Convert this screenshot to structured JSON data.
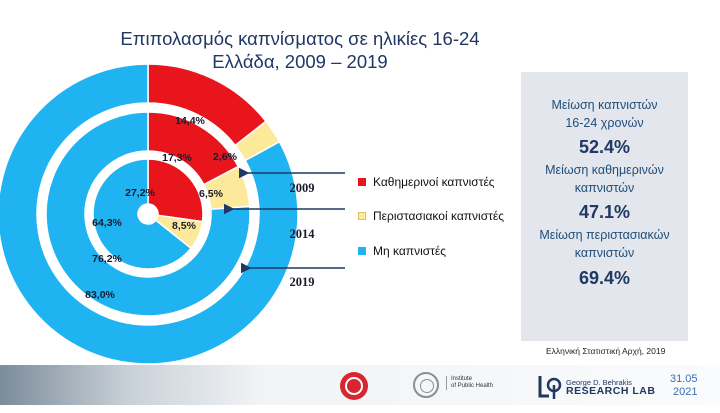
{
  "title": {
    "line1": "Επιπολασμός καπνίσματος σε ηλικίες 16-24",
    "line2": "Ελλάδα, 2009 – 2019"
  },
  "colors": {
    "daily": "#e8151c",
    "occasional": "#fce99a",
    "non_smokers": "#1fb3f2",
    "panel_text": "#1f4e79",
    "title": "#1f3864"
  },
  "chart_data": {
    "type": "pie",
    "subtype": "multi-level-donut",
    "categories": [
      "Καθημερινοί καπνιστές",
      "Περιστασιακοί καπνιστές",
      "Μη καπνιστές"
    ],
    "rings": [
      {
        "name": "2009",
        "position": "inner",
        "values": [
          27.2,
          8.5,
          64.3
        ],
        "labels": [
          "27,2%",
          "8,5%",
          "64,3%"
        ]
      },
      {
        "name": "2014",
        "position": "middle",
        "values": [
          17.3,
          6.5,
          76.2
        ],
        "labels": [
          "17,3%",
          "6,5%",
          "76,2%"
        ]
      },
      {
        "name": "2019",
        "position": "outer",
        "values": [
          14.4,
          2.6,
          83.0
        ],
        "labels": [
          "14,4%",
          "2,6%",
          "83,0%"
        ]
      }
    ],
    "legend_position": "right"
  },
  "legend": {
    "items": [
      {
        "label": "Καθημερινοί καπνιστές",
        "color": "#e8151c"
      },
      {
        "label": "Περιστασιακοί καπνιστές",
        "color": "#fce99a"
      },
      {
        "label": "Μη καπνιστές",
        "color": "#1fb3f2"
      }
    ]
  },
  "stats": [
    {
      "label_line1": "Μείωση καπνιστών",
      "label_line2": "16-24 χρονών",
      "value": "52.4%"
    },
    {
      "label_line1": "Μείωση καθημερινών",
      "label_line2": "καπνιστών",
      "value": "47.1%"
    },
    {
      "label_line1": "Μείωση περιστασιακών",
      "label_line2": "καπνιστών",
      "value": "69.4%"
    }
  ],
  "source": "Ελληνική Στατιστική Αρχή, 2019",
  "footer": {
    "iph_line1": "Institute",
    "iph_line2": "of Public Health",
    "lab_line1": "George D. Behrakis",
    "lab_line2": "RESEARCH LAB",
    "date_line1": "31.05",
    "date_line2": "2021"
  }
}
